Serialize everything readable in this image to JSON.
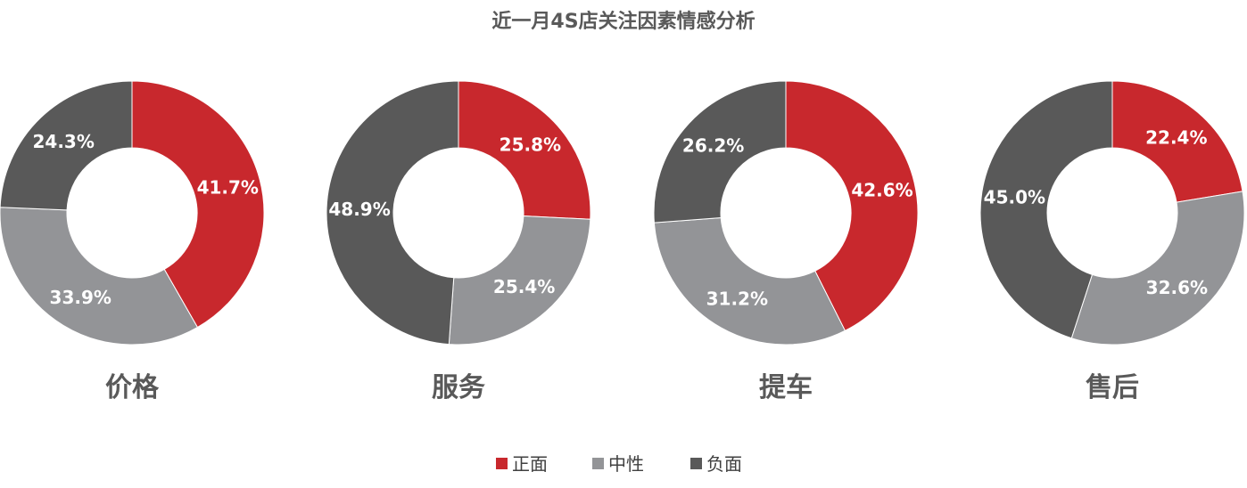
{
  "chart_data": {
    "type": "pie",
    "variant": "donut",
    "title": "近一月4S店关注因素情感分析",
    "legend_position": "bottom",
    "series": [
      {
        "name": "正面",
        "color": "#c8282d"
      },
      {
        "name": "中性",
        "color": "#939497"
      },
      {
        "name": "负面",
        "color": "#595959"
      }
    ],
    "charts": [
      {
        "label": "价格",
        "values": [
          41.7,
          33.9,
          24.3
        ],
        "labels": [
          "41.7%",
          "33.9%",
          "24.3%"
        ]
      },
      {
        "label": "服务",
        "values": [
          25.8,
          25.4,
          48.9
        ],
        "labels": [
          "25.8%",
          "25.4%",
          "48.9%"
        ]
      },
      {
        "label": "提车",
        "values": [
          42.6,
          31.2,
          26.2
        ],
        "labels": [
          "42.6%",
          "31.2%",
          "26.2%"
        ]
      },
      {
        "label": "售后",
        "values": [
          22.4,
          32.6,
          45.0
        ],
        "labels": [
          "22.4%",
          "32.6%",
          "45.0%"
        ]
      }
    ]
  }
}
